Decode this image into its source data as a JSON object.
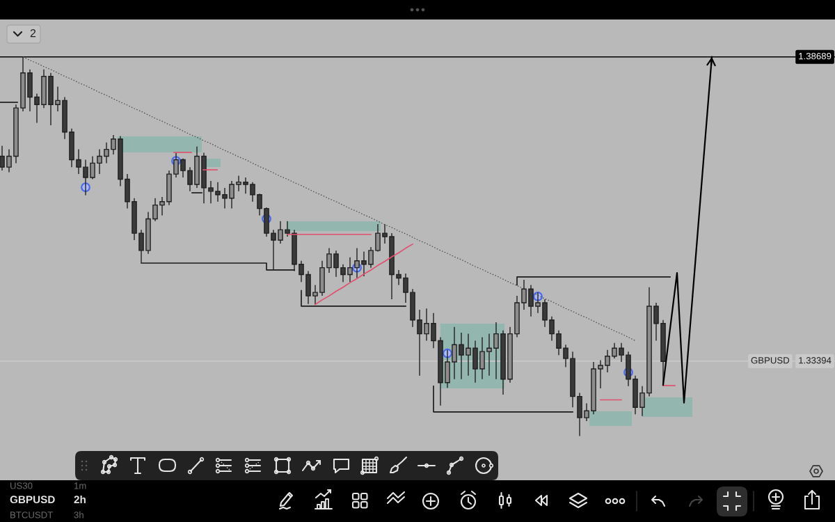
{
  "chart_data": {
    "type": "candlestick",
    "categories": [
      null,
      null,
      null,
      null,
      null,
      null,
      null,
      null,
      null,
      null,
      null,
      null,
      null,
      null,
      null,
      null,
      null,
      null,
      null,
      null,
      null,
      null,
      null,
      null,
      null,
      null,
      null,
      null,
      null,
      null,
      null,
      null,
      null,
      null,
      null,
      null,
      null,
      null,
      null,
      null,
      null,
      null,
      null,
      null,
      null,
      null,
      null,
      null,
      null,
      null,
      null,
      null,
      null,
      null,
      null,
      null,
      null,
      null,
      null,
      null,
      null,
      null,
      null,
      null,
      null,
      null,
      null,
      null,
      null,
      null,
      null,
      null,
      null,
      null,
      null,
      null,
      null,
      null,
      null,
      null,
      null,
      null,
      null,
      null,
      null,
      null,
      null,
      null,
      null,
      null,
      null,
      null,
      null,
      null,
      null,
      null,
      null,
      null,
      null,
      null,
      null,
      null,
      null
    ],
    "ohlc": [
      [
        1.3696,
        1.3714,
        1.3671,
        1.3677
      ],
      [
        1.3677,
        1.3708,
        1.3668,
        1.3696
      ],
      [
        1.3696,
        1.3786,
        1.3684,
        1.378
      ],
      [
        1.378,
        1.3869,
        1.3774,
        1.3841
      ],
      [
        1.3841,
        1.3847,
        1.3774,
        1.3799
      ],
      [
        1.3799,
        1.3805,
        1.3754,
        1.3786
      ],
      [
        1.3786,
        1.3847,
        1.378,
        1.3835
      ],
      [
        1.3835,
        1.3841,
        1.375,
        1.3786
      ],
      [
        1.3786,
        1.3817,
        1.3774,
        1.3793
      ],
      [
        1.3793,
        1.3799,
        1.3726,
        1.3738
      ],
      [
        1.3738,
        1.3744,
        1.3677,
        1.369
      ],
      [
        1.369,
        1.3708,
        1.3665,
        1.3677
      ],
      [
        1.3677,
        1.369,
        1.3628,
        1.3659
      ],
      [
        1.3659,
        1.3696,
        1.3656,
        1.3684
      ],
      [
        1.3684,
        1.3708,
        1.3665,
        1.3696
      ],
      [
        1.3696,
        1.372,
        1.3684,
        1.3708
      ],
      [
        1.3708,
        1.3733,
        1.3699,
        1.3726
      ],
      [
        1.3726,
        1.3731,
        1.3644,
        1.3656
      ],
      [
        1.3656,
        1.3665,
        1.3605,
        1.3617
      ],
      [
        1.3617,
        1.3623,
        1.355,
        1.3562
      ],
      [
        1.3562,
        1.3568,
        1.3511,
        1.3532
      ],
      [
        1.3532,
        1.3599,
        1.3526,
        1.3587
      ],
      [
        1.3587,
        1.3623,
        1.3583,
        1.3611
      ],
      [
        1.3611,
        1.3625,
        1.3593,
        1.3617
      ],
      [
        1.3617,
        1.3671,
        1.3611,
        1.3665
      ],
      [
        1.3665,
        1.3702,
        1.3659,
        1.369
      ],
      [
        1.369,
        1.3692,
        1.3659,
        1.3671
      ],
      [
        1.3671,
        1.3677,
        1.3635,
        1.3647
      ],
      [
        1.3647,
        1.3713,
        1.3641,
        1.3696
      ],
      [
        1.3696,
        1.3702,
        1.3614,
        1.3641
      ],
      [
        1.3641,
        1.3653,
        1.3614,
        1.3635
      ],
      [
        1.3635,
        1.3651,
        1.3617,
        1.3629
      ],
      [
        1.3629,
        1.3641,
        1.3605,
        1.3623
      ],
      [
        1.3623,
        1.3653,
        1.3605,
        1.3647
      ],
      [
        1.3647,
        1.3662,
        1.3635,
        1.3651
      ],
      [
        1.3651,
        1.3659,
        1.3631,
        1.3647
      ],
      [
        1.3647,
        1.3651,
        1.3617,
        1.3629
      ],
      [
        1.3629,
        1.3631,
        1.3593,
        1.3605
      ],
      [
        1.3605,
        1.3607,
        1.3556,
        1.3562
      ],
      [
        1.3562,
        1.3568,
        1.3498,
        1.355
      ],
      [
        1.355,
        1.3583,
        1.3544,
        1.3568
      ],
      [
        1.3568,
        1.3583,
        1.3556,
        1.3562
      ],
      [
        1.3562,
        1.3568,
        1.3496,
        1.3508
      ],
      [
        1.3508,
        1.3514,
        1.3477,
        1.349
      ],
      [
        1.349,
        1.3496,
        1.3439,
        1.3453
      ],
      [
        1.3453,
        1.3472,
        1.3438,
        1.3459
      ],
      [
        1.3459,
        1.3514,
        1.3453,
        1.3502
      ],
      [
        1.3502,
        1.3536,
        1.3493,
        1.3526
      ],
      [
        1.3526,
        1.3532,
        1.3486,
        1.3502
      ],
      [
        1.3502,
        1.3508,
        1.3477,
        1.349
      ],
      [
        1.349,
        1.352,
        1.3477,
        1.3502
      ],
      [
        1.3502,
        1.3536,
        1.3484,
        1.3514
      ],
      [
        1.3514,
        1.353,
        1.3487,
        1.3508
      ],
      [
        1.3508,
        1.3538,
        1.3502,
        1.3532
      ],
      [
        1.3532,
        1.3578,
        1.353,
        1.3562
      ],
      [
        1.3562,
        1.3578,
        1.3544,
        1.3556
      ],
      [
        1.3556,
        1.3562,
        1.3447,
        1.349
      ],
      [
        1.349,
        1.3498,
        1.3472,
        1.3484
      ],
      [
        1.3484,
        1.3492,
        1.3441,
        1.3459
      ],
      [
        1.3459,
        1.3465,
        1.3399,
        1.3411
      ],
      [
        1.3411,
        1.3429,
        1.3314,
        1.3387
      ],
      [
        1.3387,
        1.3431,
        1.3375,
        1.3405
      ],
      [
        1.3405,
        1.3423,
        1.3362,
        1.3375
      ],
      [
        1.3375,
        1.3381,
        1.3262,
        1.3302
      ],
      [
        1.3302,
        1.3359,
        1.3293,
        1.3338
      ],
      [
        1.3338,
        1.3399,
        1.3308,
        1.3368
      ],
      [
        1.3368,
        1.3389,
        1.3308,
        1.335
      ],
      [
        1.335,
        1.3387,
        1.3314,
        1.3362
      ],
      [
        1.3362,
        1.3375,
        1.3302,
        1.3326
      ],
      [
        1.3326,
        1.3381,
        1.3308,
        1.3356
      ],
      [
        1.3356,
        1.3387,
        1.3314,
        1.3362
      ],
      [
        1.3362,
        1.3407,
        1.3308,
        1.3387
      ],
      [
        1.3387,
        1.3393,
        1.3281,
        1.3308
      ],
      [
        1.3308,
        1.3399,
        1.3302,
        1.3387
      ],
      [
        1.3387,
        1.3453,
        1.3381,
        1.3441
      ],
      [
        1.3441,
        1.3481,
        1.3429,
        1.3465
      ],
      [
        1.3465,
        1.3472,
        1.3417,
        1.3435
      ],
      [
        1.3435,
        1.3459,
        1.3423,
        1.3441
      ],
      [
        1.3441,
        1.3447,
        1.3399,
        1.3411
      ],
      [
        1.3411,
        1.3417,
        1.3375,
        1.3387
      ],
      [
        1.3387,
        1.3393,
        1.335,
        1.3362
      ],
      [
        1.3362,
        1.3368,
        1.3329,
        1.3344
      ],
      [
        1.3344,
        1.3356,
        1.3259,
        1.3278
      ],
      [
        1.3278,
        1.3284,
        1.3209,
        1.3241
      ],
      [
        1.3241,
        1.3266,
        1.3235,
        1.3253
      ],
      [
        1.3253,
        1.3338,
        1.3247,
        1.3326
      ],
      [
        1.3326,
        1.3341,
        1.3292,
        1.3332
      ],
      [
        1.3332,
        1.3359,
        1.332,
        1.3348
      ],
      [
        1.3348,
        1.3371,
        1.3344,
        1.3362
      ],
      [
        1.3362,
        1.3371,
        1.3338,
        1.335
      ],
      [
        1.335,
        1.3356,
        1.3296,
        1.3308
      ],
      [
        1.3308,
        1.3314,
        1.3247,
        1.3259
      ],
      [
        1.3259,
        1.3296,
        1.3244,
        1.3284
      ],
      [
        1.3284,
        1.3468,
        1.3278,
        1.3435
      ],
      [
        1.3435,
        1.3441,
        1.3375,
        1.3405
      ],
      [
        1.3405,
        1.3411,
        1.3296,
        1.3339
      ],
      null,
      null,
      null,
      null,
      null,
      null,
      null
    ],
    "colors": [
      "#3a3a3a",
      "#8d8d8d",
      "#8d8d8d",
      "#8d8d8d",
      "#3a3a3a",
      "#3a3a3a",
      "#8d8d8d",
      "#3a3a3a",
      "#8d8d8d",
      "#3a3a3a",
      "#3a3a3a",
      "#3a3a3a",
      "#3a3a3a",
      "#8d8d8d",
      "#8d8d8d",
      "#8d8d8d",
      "#8d8d8d",
      "#3a3a3a",
      "#3a3a3a",
      "#3a3a3a",
      "#3a3a3a",
      "#8d8d8d",
      "#8d8d8d",
      "#8d8d8d",
      "#8d8d8d",
      "#8d8d8d",
      "#3a3a3a",
      "#3a3a3a",
      "#8d8d8d",
      "#3a3a3a",
      "#3a3a3a",
      "#3a3a3a",
      "#3a3a3a",
      "#8d8d8d",
      "#8d8d8d",
      "#3a3a3a",
      "#3a3a3a",
      "#3a3a3a",
      "#3a3a3a",
      "#3a3a3a",
      "#8d8d8d",
      "#3a3a3a",
      "#3a3a3a",
      "#3a3a3a",
      "#3a3a3a",
      "#8d8d8d",
      "#8d8d8d",
      "#8d8d8d",
      "#3a3a3a",
      "#3a3a3a",
      "#8d8d8d",
      "#8d8d8d",
      "#3a3a3a",
      "#8d8d8d",
      "#8d8d8d",
      "#3a3a3a",
      "#3a3a3a",
      "#3a3a3a",
      "#3a3a3a",
      "#3a3a3a",
      "#3a3a3a",
      "#8d8d8d",
      "#3a3a3a",
      "#3a3a3a",
      "#8d8d8d",
      "#8d8d8d",
      "#3a3a3a",
      "#8d8d8d",
      "#3a3a3a",
      "#8d8d8d",
      "#8d8d8d",
      "#8d8d8d",
      "#3a3a3a",
      "#8d8d8d",
      "#8d8d8d",
      "#8d8d8d",
      "#3a3a3a",
      "#8d8d8d",
      "#3a3a3a",
      "#3a3a3a",
      "#3a3a3a",
      "#3a3a3a",
      "#3a3a3a",
      "#3a3a3a",
      "#8d8d8d",
      "#8d8d8d",
      "#8d8d8d",
      "#8d8d8d",
      "#8d8d8d",
      "#3a3a3a",
      "#3a3a3a",
      "#3a3a3a",
      "#8d8d8d",
      "#8d8d8d",
      "#3a3a3a",
      "#3a3a3a",
      null,
      null,
      null,
      null,
      null,
      null,
      null
    ],
    "series": [
      {
        "type": "step",
        "color": "#1a1a1a",
        "values": [
          null,
          null,
          null,
          null,
          null,
          null,
          null,
          null,
          null,
          null,
          null,
          null,
          null,
          null,
          null,
          null,
          null,
          null,
          null,
          null,
          1.351,
          1.351,
          1.351,
          1.351,
          1.351,
          1.351,
          1.351,
          1.351,
          1.351,
          1.351,
          1.351,
          1.351,
          1.351,
          1.351,
          1.351,
          1.351,
          1.351,
          1.351,
          1.351,
          1.3498,
          1.3498,
          1.3498,
          1.3498,
          null,
          null,
          null,
          null,
          null,
          null,
          null,
          null,
          null,
          null,
          null,
          null,
          null,
          null,
          null,
          null,
          null,
          null,
          null,
          1.3296,
          1.3251,
          1.3251,
          1.3251,
          1.3251,
          1.3251,
          1.3251,
          1.3251,
          1.3251,
          1.3251,
          1.3251,
          1.3251,
          1.3251,
          1.3251,
          1.3251,
          1.3251,
          1.3251,
          1.3251,
          1.3251,
          1.3251,
          1.3251,
          null,
          null,
          null,
          null,
          null,
          null,
          null,
          null,
          null,
          null,
          null,
          null,
          null,
          null,
          null,
          null,
          null,
          null,
          null,
          null
        ]
      },
      {
        "type": "step",
        "color": "#1a1a1a",
        "values": [
          null,
          null,
          null,
          null,
          null,
          null,
          null,
          null,
          null,
          null,
          null,
          null,
          null,
          null,
          null,
          null,
          null,
          null,
          null,
          null,
          null,
          null,
          null,
          null,
          null,
          null,
          null,
          null,
          null,
          null,
          null,
          null,
          null,
          null,
          null,
          null,
          null,
          null,
          null,
          null,
          null,
          null,
          null,
          1.3462,
          1.3435,
          1.3435,
          1.3435,
          1.3435,
          1.3435,
          1.3435,
          1.3435,
          1.3435,
          1.3435,
          1.3435,
          1.3435,
          1.3435,
          1.3435,
          1.3435,
          1.3435,
          null,
          null,
          null,
          null,
          null,
          null,
          null,
          null,
          null,
          null,
          null,
          null,
          null,
          null,
          null,
          1.3472,
          1.3486,
          1.3486,
          1.3486,
          1.3486,
          1.3486,
          1.3486,
          1.3486,
          1.3486,
          1.3486,
          1.3486,
          1.3486,
          1.3486,
          1.3486,
          1.3486,
          1.3486,
          1.3486,
          1.3486,
          1.3486,
          1.3486,
          1.3486,
          1.3486,
          1.3486,
          null,
          null,
          null,
          null,
          null,
          null
        ]
      },
      {
        "type": "line",
        "line_style": "dotted",
        "color": "#4a4a4a",
        "values": [
          null,
          null,
          null,
          1.3869,
          1.3863,
          1.3858,
          1.3852,
          1.3847,
          1.3841,
          1.3835,
          1.383,
          1.3824,
          1.3819,
          1.3813,
          1.3807,
          1.3802,
          1.3796,
          1.379,
          1.3785,
          1.3779,
          1.3774,
          1.3768,
          1.3762,
          1.3757,
          1.3751,
          1.3746,
          1.374,
          1.3734,
          1.3729,
          1.3723,
          1.3718,
          1.3712,
          1.3706,
          1.3701,
          1.3695,
          1.369,
          1.3684,
          1.3678,
          1.3673,
          1.3667,
          1.3661,
          1.3656,
          1.365,
          1.3645,
          1.3639,
          1.3633,
          1.3628,
          1.3622,
          1.3617,
          1.3611,
          1.3605,
          1.36,
          1.3594,
          1.3589,
          1.3583,
          1.3577,
          1.3572,
          1.3566,
          1.3561,
          1.3555,
          1.3549,
          1.3544,
          1.3538,
          1.3532,
          1.3527,
          1.3521,
          1.3516,
          1.351,
          1.3504,
          1.3499,
          1.3493,
          1.3488,
          1.3482,
          1.3476,
          1.3471,
          1.3465,
          1.346,
          1.3454,
          1.3448,
          1.3443,
          1.3437,
          1.3431,
          1.3426,
          1.342,
          1.3415,
          1.3409,
          1.3403,
          1.3398,
          1.3392,
          1.3387,
          1.3381,
          1.3375,
          null,
          null,
          null,
          null,
          null,
          null,
          null,
          null,
          null,
          null,
          null
        ]
      },
      {
        "type": "line",
        "color": "#e0506e",
        "values": [
          null,
          null,
          null,
          null,
          null,
          null,
          null,
          null,
          null,
          null,
          null,
          null,
          null,
          null,
          null,
          null,
          null,
          null,
          null,
          null,
          null,
          null,
          null,
          null,
          null,
          null,
          null,
          null,
          null,
          null,
          null,
          null,
          null,
          null,
          null,
          null,
          null,
          null,
          null,
          null,
          null,
          1.356,
          1.356,
          1.356,
          1.356,
          1.356,
          1.356,
          1.356,
          1.356,
          1.356,
          1.356,
          1.356,
          1.356,
          1.356,
          null,
          null,
          null,
          null,
          null,
          null,
          null,
          null,
          null,
          null,
          null,
          null,
          null,
          null,
          null,
          null,
          null,
          null,
          null,
          null,
          null,
          null,
          null,
          null,
          null,
          null,
          null,
          null,
          null,
          null,
          null,
          null,
          1.3272,
          1.3272,
          1.3272,
          1.3272,
          null,
          null,
          null,
          null,
          null,
          null,
          null,
          null,
          null,
          null,
          null,
          null,
          null
        ]
      },
      {
        "type": "line",
        "color": "#e0506e",
        "values": [
          null,
          null,
          null,
          null,
          null,
          null,
          null,
          null,
          null,
          null,
          null,
          null,
          null,
          null,
          null,
          null,
          null,
          null,
          null,
          null,
          null,
          null,
          null,
          null,
          null,
          null,
          null,
          null,
          null,
          null,
          null,
          null,
          null,
          null,
          null,
          null,
          null,
          null,
          null,
          null,
          null,
          null,
          null,
          null,
          null,
          1.3438,
          1.3446,
          1.3453,
          1.3461,
          1.3468,
          1.3476,
          1.3483,
          1.3491,
          1.3498,
          1.3506,
          1.3513,
          1.3521,
          1.3528,
          1.3536,
          1.3543,
          null,
          null,
          null,
          null,
          null,
          null,
          null,
          null,
          null,
          null,
          null,
          null,
          null,
          null,
          null,
          null,
          null,
          null,
          null,
          null,
          null,
          null,
          null,
          null,
          null,
          null,
          null,
          null,
          null,
          null,
          null,
          null,
          null,
          null,
          null,
          null,
          null,
          null,
          null,
          null,
          null,
          null,
          null
        ]
      },
      {
        "type": "scatter",
        "marker": "circle",
        "color": "#4a68e8",
        "values": [
          null,
          null,
          null,
          null,
          null,
          null,
          null,
          null,
          null,
          null,
          null,
          null,
          1.3642,
          null,
          null,
          null,
          null,
          null,
          null,
          null,
          null,
          null,
          null,
          null,
          null,
          1.3688,
          null,
          null,
          null,
          null,
          null,
          null,
          null,
          null,
          null,
          null,
          null,
          null,
          1.3587,
          null,
          null,
          null,
          null,
          null,
          null,
          null,
          null,
          null,
          null,
          null,
          null,
          1.3502,
          null,
          null,
          null,
          null,
          null,
          null,
          null,
          null,
          null,
          null,
          null,
          null,
          1.3353,
          null,
          null,
          null,
          null,
          null,
          null,
          null,
          null,
          null,
          null,
          null,
          null,
          1.3452,
          null,
          null,
          null,
          null,
          null,
          null,
          null,
          null,
          null,
          null,
          null,
          null,
          1.332,
          null,
          null,
          null,
          null,
          null,
          null,
          null,
          null,
          null,
          null,
          null,
          null
        ]
      },
      {
        "type": "line",
        "color": "#000000",
        "values": [
          null,
          null,
          null,
          null,
          null,
          null,
          null,
          null,
          null,
          null,
          null,
          null,
          null,
          null,
          null,
          null,
          null,
          null,
          null,
          null,
          null,
          null,
          null,
          null,
          null,
          null,
          null,
          null,
          null,
          null,
          null,
          null,
          null,
          null,
          null,
          null,
          null,
          null,
          null,
          null,
          null,
          null,
          null,
          null,
          null,
          null,
          null,
          null,
          null,
          null,
          null,
          null,
          null,
          null,
          null,
          null,
          null,
          null,
          null,
          null,
          null,
          null,
          null,
          null,
          null,
          null,
          null,
          null,
          null,
          null,
          null,
          null,
          null,
          null,
          null,
          null,
          null,
          null,
          null,
          null,
          null,
          null,
          null,
          null,
          null,
          null,
          null,
          null,
          null,
          null,
          null,
          null,
          null,
          null,
          null,
          1.3298,
          1.3396,
          1.3493,
          1.3267,
          1.3418,
          1.3568,
          1.3719,
          1.3869
        ]
      }
    ],
    "ylim": [
      1.3183,
      1.3934
    ],
    "yticks": [
      1.38689,
      1.33394
    ],
    "tick_labels": "y",
    "ref_lines": [
      {
        "axis": "y",
        "value": 1.38689,
        "color": "#000000"
      },
      {
        "axis": "y",
        "value": 1.33394,
        "label": "GBPUSD",
        "color": "#c9c9c9"
      }
    ],
    "annotations": [
      "2",
      "US30",
      "1m",
      "GBPUSD",
      "2h",
      "BTCUSDT",
      "3h"
    ]
  }
}
